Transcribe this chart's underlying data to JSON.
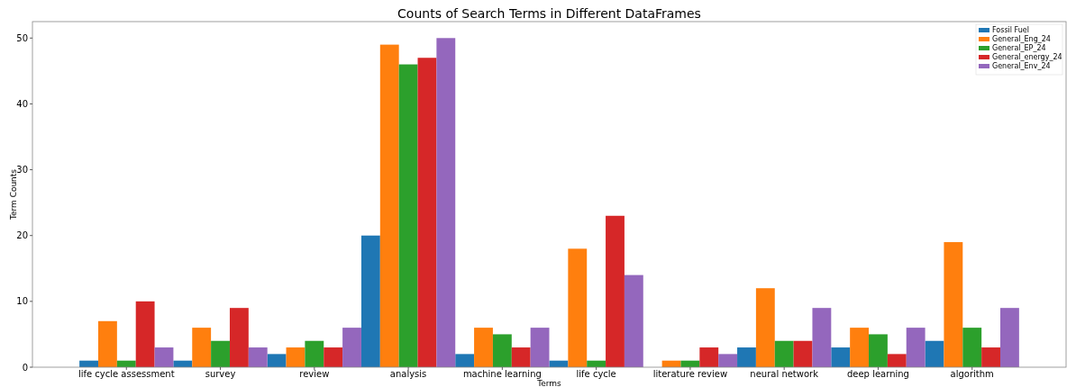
{
  "chart_data": {
    "type": "bar",
    "title": "Counts of Search Terms in Different DataFrames",
    "xlabel": "Terms",
    "ylabel": "Term Counts",
    "categories": [
      "life cycle assessment",
      "survey",
      "review",
      "analysis",
      "machine learning",
      "life cycle",
      "literature review",
      "neural network",
      "deep learning",
      "algorithm"
    ],
    "series": [
      {
        "name": "Fossil Fuel",
        "color": "#1f77b4",
        "values": [
          1,
          1,
          2,
          20,
          2,
          1,
          0,
          3,
          3,
          4
        ]
      },
      {
        "name": "General_Eng_24",
        "color": "#ff7f0e",
        "values": [
          7,
          6,
          3,
          49,
          6,
          18,
          1,
          12,
          6,
          19
        ]
      },
      {
        "name": "General_EP_24",
        "color": "#2ca02c",
        "values": [
          1,
          4,
          4,
          46,
          5,
          1,
          1,
          4,
          5,
          6
        ]
      },
      {
        "name": "General_energy_24",
        "color": "#d62728",
        "values": [
          10,
          9,
          3,
          47,
          3,
          23,
          3,
          4,
          2,
          3
        ]
      },
      {
        "name": "General_Env_24",
        "color": "#9467bd",
        "values": [
          3,
          3,
          6,
          50,
          6,
          14,
          2,
          9,
          6,
          9
        ]
      }
    ],
    "ylim": [
      0,
      52.5
    ],
    "yticks": [
      0,
      10,
      20,
      30,
      40,
      50
    ],
    "grid": false,
    "legend": "top right"
  }
}
